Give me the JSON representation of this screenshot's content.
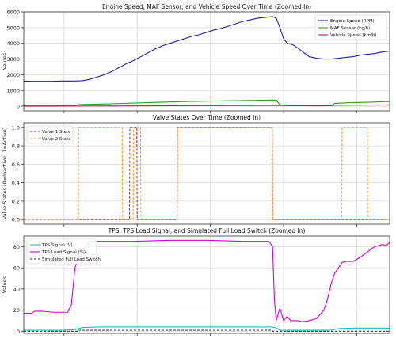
{
  "chart_data": [
    {
      "type": "line",
      "title": "Engine Speed, MAF Sensor, and Vehicle Speed Over Time (Zoomed In)",
      "xlabel": "",
      "ylabel": "Values",
      "xlim": [
        0,
        100
      ],
      "ylim": [
        -300,
        6000
      ],
      "yticks": [
        0,
        1000,
        2000,
        3000,
        4000,
        5000,
        6000
      ],
      "xtick_labels_shown": false,
      "grid": true,
      "legend_position": "top-right",
      "series": [
        {
          "name": "Engine Speed (RPM)",
          "color": "#1f1fa8",
          "x": [
            0,
            2,
            5,
            8,
            10,
            12,
            14,
            16,
            18,
            20,
            22,
            24,
            26,
            28,
            30,
            32,
            34,
            36,
            38,
            40,
            42,
            44,
            46,
            48,
            50,
            52,
            54,
            56,
            58,
            60,
            62,
            64,
            66,
            68,
            69,
            70,
            71,
            72,
            73,
            74,
            76,
            78,
            80,
            82,
            84,
            86,
            88,
            90,
            92,
            94,
            96,
            98,
            100
          ],
          "y": [
            1600,
            1580,
            1580,
            1580,
            1600,
            1600,
            1600,
            1620,
            1700,
            1850,
            2000,
            2200,
            2450,
            2700,
            2900,
            3150,
            3400,
            3650,
            3850,
            4000,
            4150,
            4300,
            4450,
            4550,
            4700,
            4850,
            4950,
            5100,
            5250,
            5400,
            5500,
            5600,
            5650,
            5700,
            5600,
            5000,
            4300,
            4000,
            3950,
            3850,
            3500,
            3150,
            3050,
            3000,
            3000,
            3050,
            3100,
            3150,
            3250,
            3300,
            3350,
            3450,
            3500
          ]
        },
        {
          "name": "MAF Sensor (kg/h)",
          "color": "#2a9d2a",
          "x": [
            0,
            5,
            10,
            14,
            15,
            20,
            25,
            30,
            35,
            40,
            45,
            50,
            55,
            60,
            65,
            68,
            69,
            70,
            71,
            72,
            75,
            80,
            84,
            85,
            90,
            95,
            100
          ],
          "y": [
            30,
            30,
            30,
            30,
            100,
            130,
            160,
            200,
            240,
            270,
            300,
            320,
            340,
            360,
            380,
            390,
            380,
            100,
            60,
            40,
            30,
            30,
            40,
            180,
            230,
            260,
            300
          ]
        },
        {
          "name": "Vehicle Speed (km/h)",
          "color": "#c2185b",
          "x": [
            0,
            10,
            20,
            30,
            40,
            50,
            60,
            68,
            70,
            75,
            80,
            84,
            85,
            90,
            95,
            100
          ],
          "y": [
            0,
            5,
            12,
            20,
            28,
            35,
            42,
            48,
            40,
            30,
            25,
            28,
            60,
            70,
            75,
            80
          ]
        }
      ]
    },
    {
      "type": "line",
      "title": "Valve States Over Time (Zoomed In)",
      "xlabel": "",
      "ylabel": "Valve States (0=Inactive, 1=Active)",
      "xlim": [
        0,
        100
      ],
      "ylim": [
        -0.05,
        1.05
      ],
      "yticks": [
        0.0,
        0.2,
        0.4,
        0.6,
        0.8,
        1.0
      ],
      "xtick_labels_shown": false,
      "grid": true,
      "legend_position": "top-left",
      "series": [
        {
          "name": "Valve 1 State",
          "color": "#d62728",
          "dash": "dashed",
          "x": [
            0,
            28.9,
            29,
            30.9,
            31,
            41.9,
            42,
            67.9,
            68,
            82.9,
            83,
            100
          ],
          "y": [
            0,
            0,
            1,
            1,
            0,
            0,
            1,
            1,
            0,
            0,
            0,
            0
          ]
        },
        {
          "name": "Valve 2 State",
          "color": "#ff9f1c",
          "dash": "dashed",
          "x": [
            0,
            14.9,
            15,
            26.9,
            27,
            29.9,
            30,
            31.9,
            32,
            41.9,
            42,
            67.9,
            68,
            86.9,
            87,
            93.9,
            94,
            100
          ],
          "y": [
            0,
            0,
            1,
            1,
            0,
            0,
            1,
            1,
            0,
            0,
            1,
            1,
            0,
            0,
            1,
            1,
            0,
            0
          ]
        }
      ]
    },
    {
      "type": "line",
      "title": "TPS, TPS Load Signal, and Simulated Full Load Switch (Zoomed In)",
      "xlabel": "",
      "ylabel": "Values",
      "xlim": [
        0,
        100
      ],
      "ylim": [
        -2,
        90
      ],
      "yticks": [
        0,
        20,
        40,
        60,
        80
      ],
      "xtick_labels_shown": false,
      "grid": true,
      "legend_position": "top-left",
      "series": [
        {
          "name": "TPS Signal (V)",
          "color": "#17becf",
          "x": [
            0,
            10,
            14,
            16,
            20,
            40,
            60,
            68,
            69,
            70,
            80,
            84,
            86,
            90,
            95,
            100
          ],
          "y": [
            1,
            1,
            1.5,
            3.5,
            4,
            4,
            4,
            4,
            3,
            1,
            1,
            1,
            2.5,
            3,
            3,
            3
          ]
        },
        {
          "name": "TPS Load Signal (%)",
          "color": "#d400d4",
          "x": [
            0,
            2,
            3,
            5,
            8,
            10,
            12,
            13,
            14,
            15,
            16,
            17,
            18,
            20,
            25,
            30,
            40,
            50,
            60,
            67,
            68,
            68.5,
            69,
            70,
            71,
            72,
            73,
            75,
            76,
            78,
            80,
            82,
            83,
            84,
            85,
            86,
            87,
            88,
            89,
            90,
            92,
            94,
            95,
            96,
            98,
            99,
            100
          ],
          "y": [
            17,
            17,
            19,
            19,
            18,
            18,
            18,
            25,
            60,
            70,
            73,
            80,
            85,
            85,
            85,
            85,
            86,
            86,
            85,
            85,
            80,
            30,
            10,
            22,
            10,
            14,
            10,
            10,
            9,
            10,
            12,
            20,
            30,
            45,
            55,
            60,
            65,
            66,
            66,
            66,
            70,
            75,
            78,
            80,
            82,
            81,
            84
          ]
        },
        {
          "name": "Simulated Full Load Switch",
          "color": "#333333",
          "dash": "dashed",
          "x": [
            0,
            14.9,
            15,
            67.9,
            68,
            100
          ],
          "y": [
            0,
            0,
            1,
            1,
            0,
            0
          ]
        }
      ]
    }
  ]
}
